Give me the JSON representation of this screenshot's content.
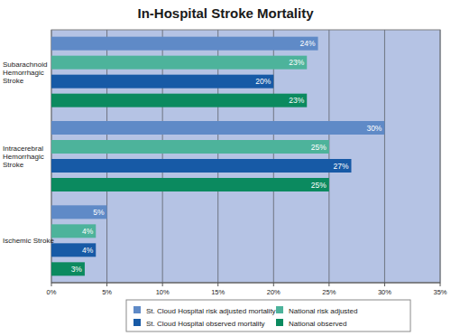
{
  "chart_data": {
    "type": "bar",
    "orientation": "horizontal",
    "title": "In-Hospital Stroke Mortality",
    "categories": [
      "Subarachnoid Hemorrhagic Stroke",
      "Intracerebral Hemorrhagic Stroke",
      "Ischemic Stroke"
    ],
    "series": [
      {
        "name": "St. Cloud Hospital risk adjusted mortality",
        "color": "#5f8ac7",
        "values": [
          24,
          30,
          5
        ],
        "value_labels": [
          "24%",
          "30%",
          "5%"
        ]
      },
      {
        "name": "National risk adjusted",
        "color": "#4db39b",
        "values": [
          23,
          25,
          4
        ],
        "value_labels": [
          "23%",
          "25%",
          "4%"
        ]
      },
      {
        "name": "St. Cloud Hospital observed mortality",
        "color": "#175aa6",
        "values": [
          20,
          27,
          4
        ],
        "value_labels": [
          "20%",
          "27%",
          "4%"
        ]
      },
      {
        "name": "National observed",
        "color": "#0b8a5f",
        "values": [
          23,
          25,
          3
        ],
        "value_labels": [
          "23%",
          "25%",
          "3%"
        ]
      }
    ],
    "xlim": [
      0,
      35
    ],
    "xticks": [
      {
        "value": 0,
        "label": "0%"
      },
      {
        "value": 5,
        "label": "5%"
      },
      {
        "value": 10,
        "label": "10%"
      },
      {
        "value": 15,
        "label": "15%"
      },
      {
        "value": 20,
        "label": "20%"
      },
      {
        "value": 25,
        "label": "25%"
      },
      {
        "value": 30,
        "label": "30%"
      },
      {
        "value": 35,
        "label": "35%"
      }
    ],
    "grid": true,
    "data_labels": true,
    "legend": "bottom"
  }
}
